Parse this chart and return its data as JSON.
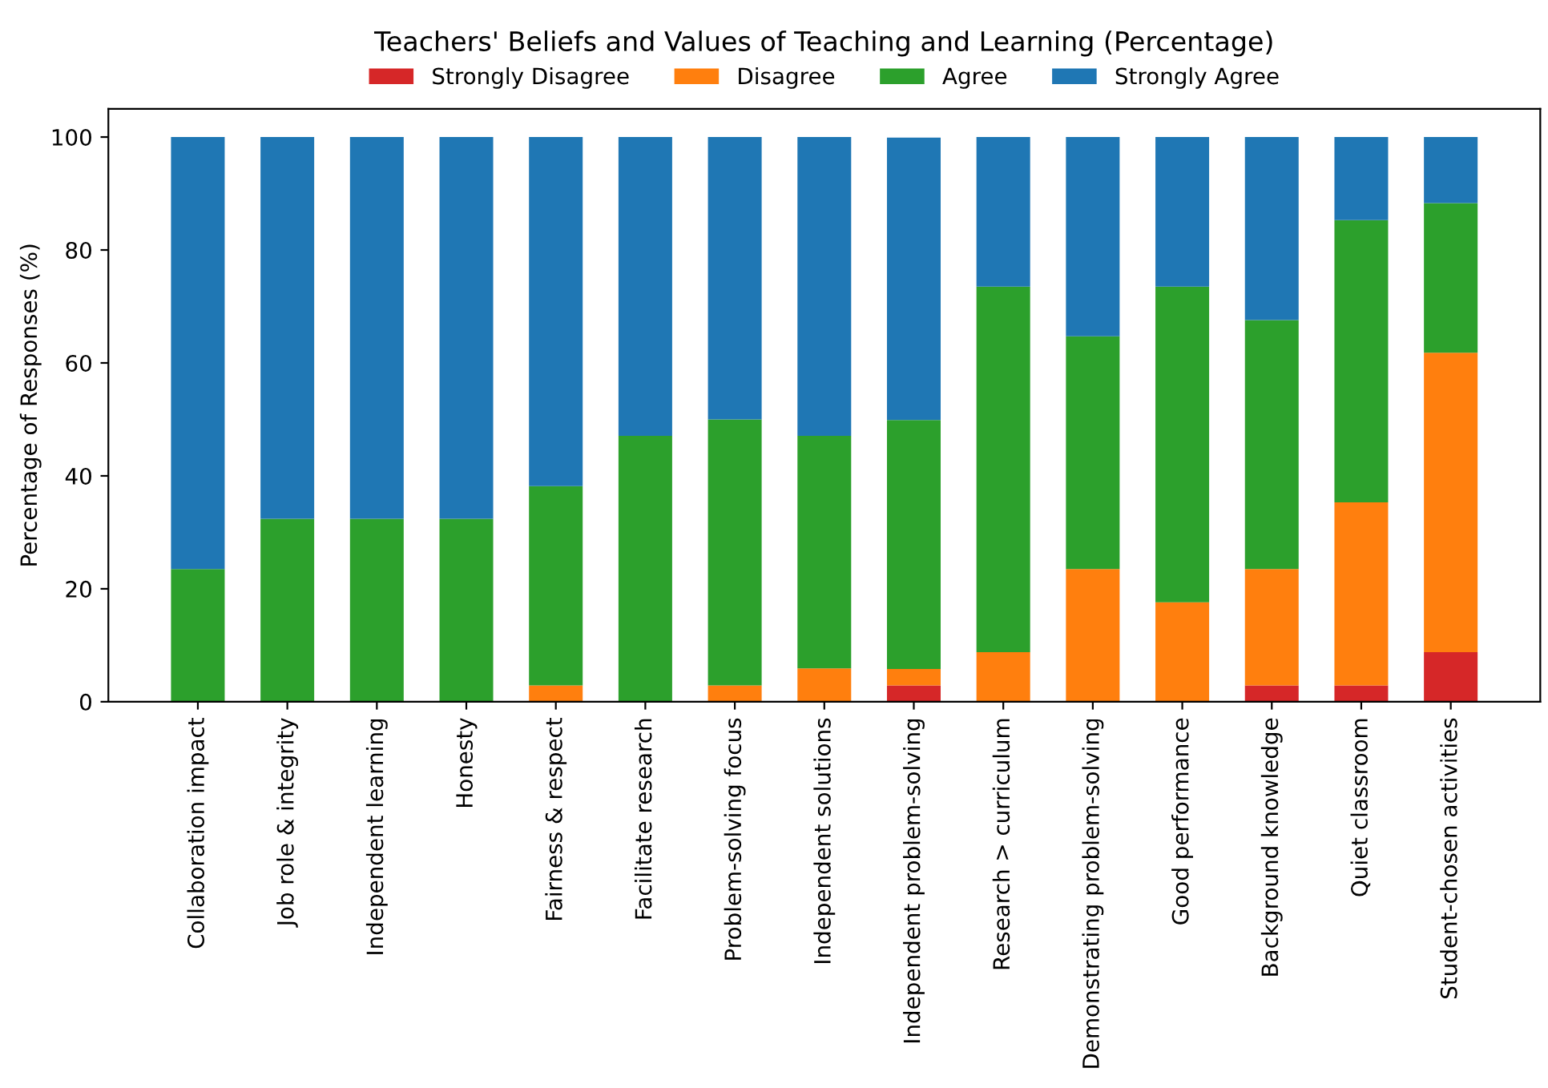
{
  "chart_data": {
    "type": "bar",
    "title": "Teachers' Beliefs and Values of Teaching and Learning (Percentage)",
    "ylabel": "Percentage of Responses (%)",
    "stacked": true,
    "legend": "top",
    "grid": false,
    "categories": [
      "Collaboration impact",
      "Job role & integrity",
      "Independent learning",
      "Honesty",
      "Fairness & respect",
      "Facilitate research",
      "Problem-solving focus",
      "Independent solutions",
      "Independent problem-solving",
      "Research > curriculum",
      "Demonstrating problem-solving",
      "Good performance",
      "Background knowledge",
      "Quiet classroom",
      "Student-chosen activities"
    ],
    "ylim": [
      0,
      105
    ],
    "yticks": [
      0,
      20,
      40,
      60,
      80,
      100
    ],
    "series": [
      {
        "name": "Strongly Disagree",
        "color": "#d62728",
        "values": [
          0,
          0,
          0,
          0,
          0,
          0,
          0,
          0,
          2.9,
          0,
          0,
          0,
          2.9,
          2.9,
          8.8
        ]
      },
      {
        "name": "Disagree",
        "color": "#ff7f0e",
        "values": [
          0,
          0,
          0,
          0,
          2.9,
          0,
          2.9,
          5.9,
          2.9,
          8.8,
          23.5,
          17.6,
          20.6,
          32.4,
          53.0
        ]
      },
      {
        "name": "Agree",
        "color": "#2ca02c",
        "values": [
          23.5,
          32.4,
          32.4,
          32.4,
          35.3,
          47.1,
          47.1,
          41.2,
          44.1,
          64.7,
          41.2,
          55.9,
          44.1,
          50.0,
          26.5
        ]
      },
      {
        "name": "Strongly Agree",
        "color": "#1f77b4",
        "values": [
          76.5,
          67.6,
          67.6,
          67.6,
          61.8,
          52.9,
          50.0,
          52.9,
          50.0,
          26.5,
          35.3,
          26.5,
          32.4,
          14.7,
          11.7
        ]
      }
    ]
  }
}
